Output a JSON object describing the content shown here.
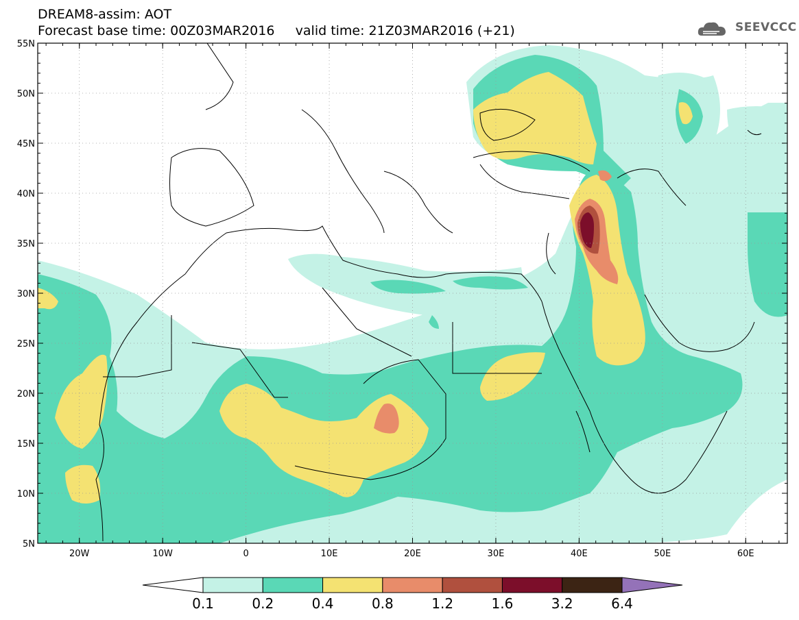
{
  "title_line1": "DREAM8-assim: AOT",
  "title_line2": "Forecast base time: 00Z03MAR2016     valid time: 21Z03MAR2016 (+21)",
  "logo_text": "SEEVCCC",
  "lat_labels": [
    "55N",
    "50N",
    "45N",
    "40N",
    "35N",
    "30N",
    "25N",
    "20N",
    "15N",
    "10N",
    "5N"
  ],
  "lon_labels": [
    "20W",
    "10W",
    "0",
    "10E",
    "20E",
    "30E",
    "40E",
    "50E",
    "60E"
  ],
  "colorbar": {
    "labels": [
      "0.1",
      "0.2",
      "0.4",
      "0.8",
      "1.2",
      "1.6",
      "3.2",
      "6.4"
    ],
    "colors": [
      "#ffffff",
      "#c4f2e6",
      "#5ad8b6",
      "#f4e272",
      "#e88c6a",
      "#b0503e",
      "#7c0e2a",
      "#3c2414",
      "#9472b8"
    ]
  },
  "extent": {
    "lon": [
      -25,
      65
    ],
    "lat": [
      5,
      55
    ]
  }
}
